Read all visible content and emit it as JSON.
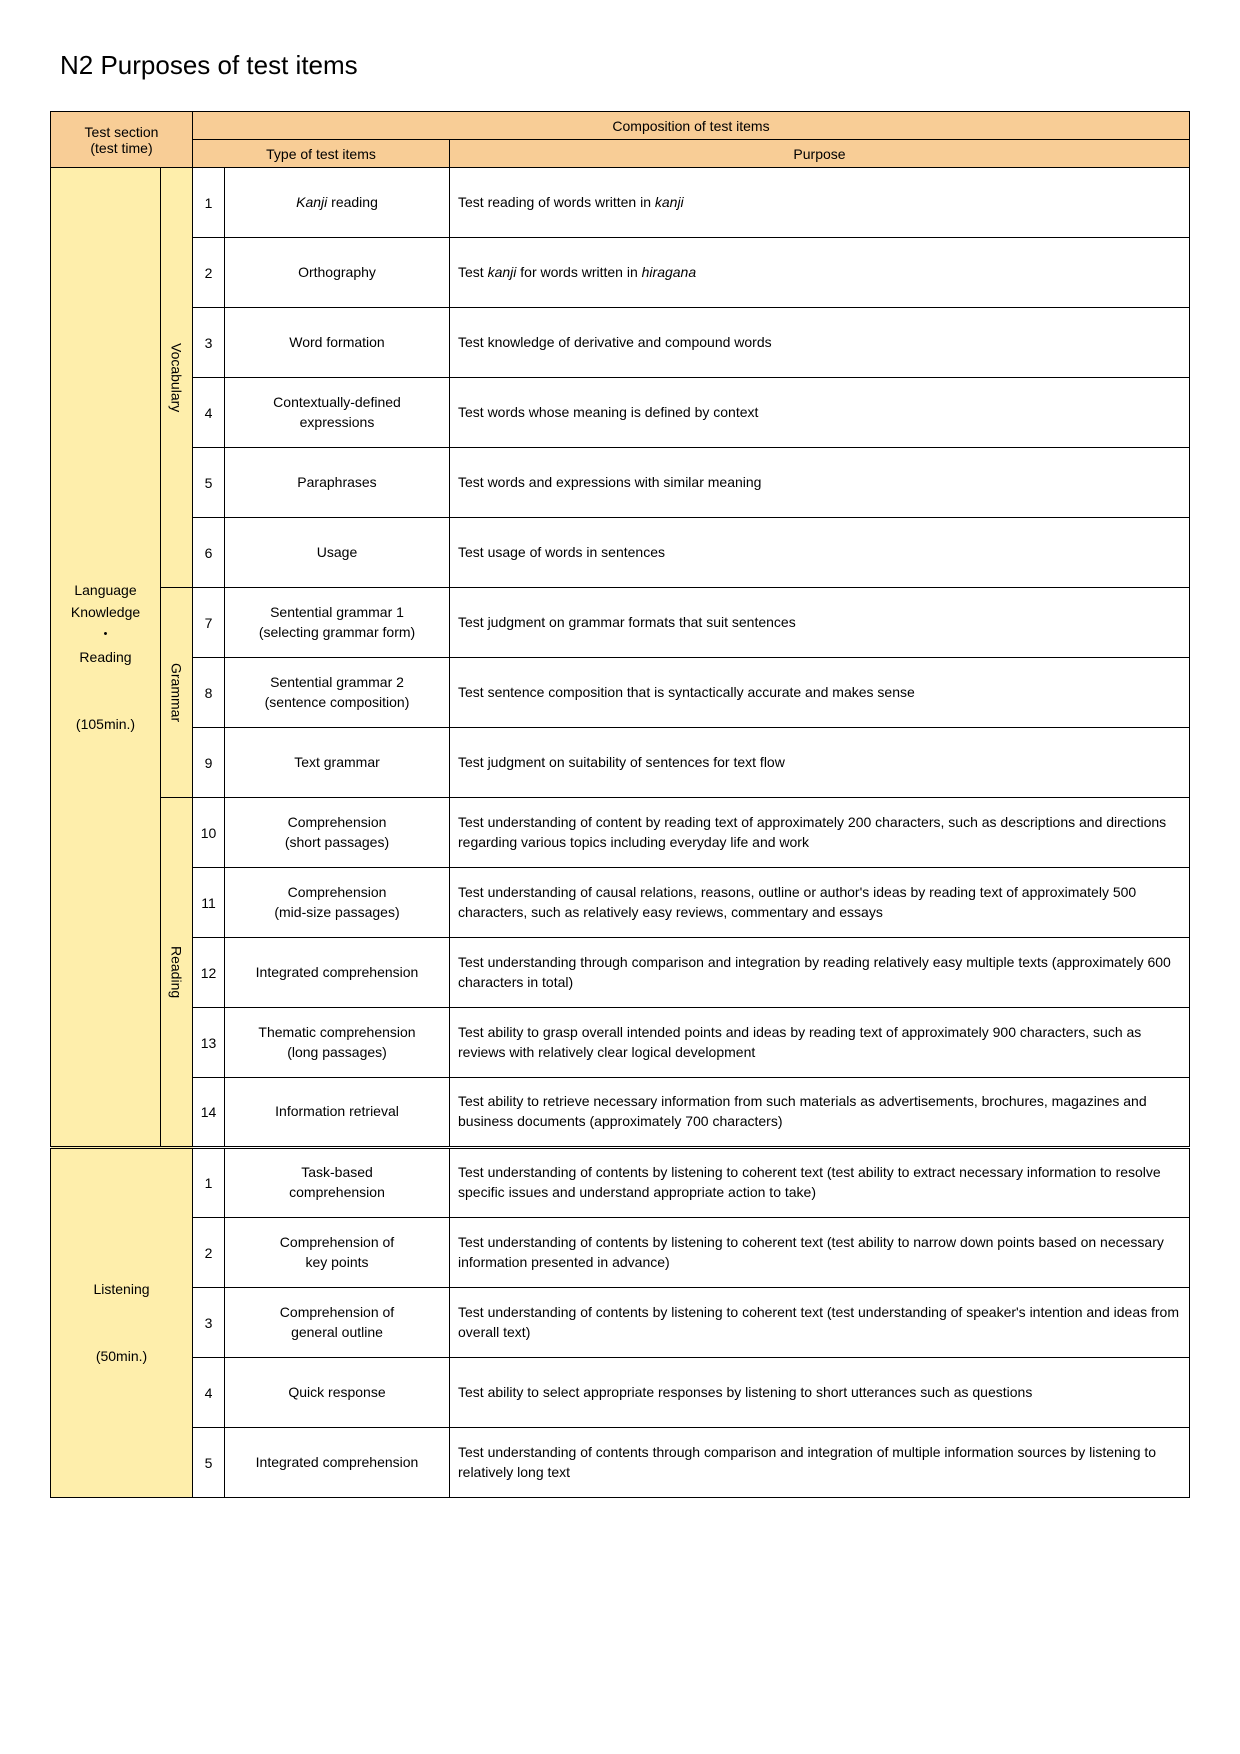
{
  "title": "N2  Purposes of test items",
  "colors": {
    "header_orange": "#f8cd96",
    "section_yellow": "#feeeab"
  },
  "headers": {
    "test_section": "Test section",
    "test_time": "(test time)",
    "composition": "Composition of test items",
    "type": "Type of test items",
    "purpose": "Purpose"
  },
  "sections": [
    {
      "label_lines": [
        "Language",
        "Knowledge",
        "・",
        "Reading",
        "",
        "(105min.)"
      ],
      "subgroups": [
        {
          "label": "Vocabulary",
          "rows": [
            {
              "num": "1",
              "type": "<span class='italic'>Kanji</span> reading",
              "purpose": "Test reading of words written in <span class='italic'>kanji</span>"
            },
            {
              "num": "2",
              "type": "Orthography",
              "purpose": "Test <span class='italic'>kanji</span> for words written in <span class='italic'>hiragana</span>"
            },
            {
              "num": "3",
              "type": "Word formation",
              "purpose": "Test knowledge of derivative and compound words"
            },
            {
              "num": "4",
              "type": "Contextually-defined<br>expressions",
              "purpose": "Test words whose meaning is defined by context"
            },
            {
              "num": "5",
              "type": "Paraphrases",
              "purpose": "Test words and expressions with similar meaning"
            },
            {
              "num": "6",
              "type": "Usage",
              "purpose": "Test usage of words in sentences"
            }
          ]
        },
        {
          "label": "Grammar",
          "rows": [
            {
              "num": "7",
              "type": "Sentential grammar 1<br>(selecting grammar form)",
              "purpose": "Test judgment on grammar formats that suit sentences"
            },
            {
              "num": "8",
              "type": "Sentential grammar 2<br>(sentence composition)",
              "purpose": "Test sentence composition that is syntactically accurate and makes sense"
            },
            {
              "num": "9",
              "type": "Text grammar",
              "purpose": "Test judgment on suitability of sentences for text flow"
            }
          ]
        },
        {
          "label": "Reading",
          "rows": [
            {
              "num": "10",
              "type": "Comprehension<br>(short passages)",
              "purpose": "Test understanding of content by reading text of approximately 200 characters, such as descriptions and directions regarding various topics including everyday life and work"
            },
            {
              "num": "11",
              "type": "Comprehension<br>(mid-size passages)",
              "purpose": "Test understanding of causal relations, reasons, outline or author's ideas by reading text of approximately 500 characters, such as relatively easy reviews, commentary and essays"
            },
            {
              "num": "12",
              "type": "Integrated comprehension",
              "purpose": "Test understanding through comparison and integration by reading relatively easy multiple texts (approximately 600 characters in total)"
            },
            {
              "num": "13",
              "type": "Thematic comprehension<br>(long passages)",
              "purpose": "Test ability to grasp overall intended points and ideas by reading text of approximately 900 characters, such as reviews with relatively clear logical development"
            },
            {
              "num": "14",
              "type": "Information retrieval",
              "purpose": "Test ability to retrieve necessary information from such materials as advertisements, brochures, magazines and business documents (approximately 700 characters)"
            }
          ]
        }
      ]
    },
    {
      "label_lines": [
        "Listening",
        "",
        "(50min.)"
      ],
      "subgroups": [
        {
          "label": "",
          "rows": [
            {
              "num": "1",
              "type": "Task-based<br>comprehension",
              "purpose": "Test understanding of contents by listening to coherent text (test ability to extract necessary information to resolve specific issues and understand appropriate action to take)"
            },
            {
              "num": "2",
              "type": "Comprehension of<br>key points",
              "purpose": "Test understanding of contents by listening to coherent text (test ability to narrow down points based on necessary information presented in advance)"
            },
            {
              "num": "3",
              "type": "Comprehension of<br>general outline",
              "purpose": "Test understanding of contents by listening to coherent text (test understanding of speaker's intention and ideas from overall text)"
            },
            {
              "num": "4",
              "type": "Quick response",
              "purpose": "Test ability to select appropriate responses by listening to short utterances such as questions"
            },
            {
              "num": "5",
              "type": "Integrated comprehension",
              "purpose": "Test understanding of contents through comparison and integration of multiple information sources by listening to relatively long text"
            }
          ]
        }
      ]
    }
  ]
}
